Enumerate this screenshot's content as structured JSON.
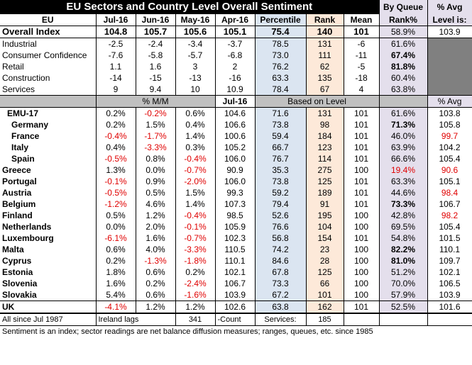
{
  "title": "EU Sectors and Country Level Overall Sentiment",
  "queue_header": [
    "By Queue",
    "Rank%"
  ],
  "avg_header": [
    "% Avg",
    "Level is:"
  ],
  "columns": [
    "EU",
    "Jul-16",
    "Jun-16",
    "May-16",
    "Apr-16",
    "Percentile",
    "Rank",
    "Mean"
  ],
  "overall": {
    "label": "Overall Index",
    "m1": "104.8",
    "m2": "105.7",
    "m3": "105.6",
    "m4": "105.1",
    "pct": "75.4",
    "rank": "140",
    "mean": "101",
    "queue": "58.9%",
    "avg": "103.9"
  },
  "sectors": [
    {
      "label": "Industrial",
      "m1": "-2.5",
      "m2": "-2.4",
      "m3": "-3.4",
      "m4": "-3.7",
      "pct": "78.5",
      "rank": "131",
      "mean": "-6",
      "queue": "61.6%",
      "qbold": false
    },
    {
      "label": "Consumer Confidence",
      "m1": "-7.6",
      "m2": "-5.8",
      "m3": "-5.7",
      "m4": "-6.8",
      "pct": "73.0",
      "rank": "111",
      "mean": "-11",
      "queue": "67.4%",
      "qbold": true
    },
    {
      "label": "Retail",
      "m1": "1.1",
      "m2": "1.6",
      "m3": "3",
      "m4": "2",
      "pct": "76.2",
      "rank": "62",
      "mean": "-5",
      "queue": "81.8%",
      "qbold": true
    },
    {
      "label": "Construction",
      "m1": "-14",
      "m2": "-15",
      "m3": "-13",
      "m4": "-16",
      "pct": "63.3",
      "rank": "135",
      "mean": "-18",
      "queue": "60.4%",
      "qbold": false
    },
    {
      "label": "Services",
      "m1": "9",
      "m2": "9.4",
      "m3": "10",
      "m4": "10.9",
      "pct": "78.4",
      "rank": "67",
      "mean": "4",
      "queue": "63.8%",
      "qbold": false
    }
  ],
  "subheader": {
    "mm": "% M/M",
    "jul": "Jul-16",
    "based": "Based on Level",
    "avg": "% Avg"
  },
  "countries": [
    {
      "label": "EMU-17",
      "indent": 1,
      "c1": "0.2%",
      "c2": "-0.2%",
      "c3": "0.6%",
      "lvl": "104.6",
      "pct": "71.6",
      "rank": "131",
      "mean": "101",
      "queue": "61.6%",
      "avg": "103.8",
      "red": [
        false,
        true,
        false
      ],
      "qbold": false,
      "qred": false,
      "ared": false
    },
    {
      "label": "Germany",
      "indent": 2,
      "c1": "0.2%",
      "c2": "1.5%",
      "c3": "0.4%",
      "lvl": "106.6",
      "pct": "73.8",
      "rank": "98",
      "mean": "101",
      "queue": "71.3%",
      "avg": "105.8",
      "red": [
        false,
        false,
        false
      ],
      "qbold": true,
      "qred": false,
      "ared": false
    },
    {
      "label": "France",
      "indent": 2,
      "c1": "-0.4%",
      "c2": "-1.7%",
      "c3": "1.4%",
      "lvl": "100.6",
      "pct": "59.4",
      "rank": "184",
      "mean": "101",
      "queue": "46.0%",
      "avg": "99.7",
      "red": [
        true,
        true,
        false
      ],
      "qbold": false,
      "qred": false,
      "ared": true
    },
    {
      "label": "Italy",
      "indent": 2,
      "c1": "0.4%",
      "c2": "-3.3%",
      "c3": "0.3%",
      "lvl": "105.2",
      "pct": "66.7",
      "rank": "123",
      "mean": "101",
      "queue": "63.9%",
      "avg": "104.2",
      "red": [
        false,
        true,
        false
      ],
      "qbold": false,
      "qred": false,
      "ared": false
    },
    {
      "label": "Spain",
      "indent": 2,
      "c1": "-0.5%",
      "c2": "0.8%",
      "c3": "-0.4%",
      "lvl": "106.0",
      "pct": "76.7",
      "rank": "114",
      "mean": "101",
      "queue": "66.6%",
      "avg": "105.4",
      "red": [
        true,
        false,
        true
      ],
      "qbold": false,
      "qred": false,
      "ared": false
    },
    {
      "label": "Greece",
      "indent": 0,
      "c1": "1.3%",
      "c2": "0.0%",
      "c3": "-0.7%",
      "lvl": "90.9",
      "pct": "35.3",
      "rank": "275",
      "mean": "100",
      "queue": "19.4%",
      "avg": "90.6",
      "red": [
        false,
        false,
        true
      ],
      "qbold": false,
      "qred": true,
      "ared": true
    },
    {
      "label": "Portugal",
      "indent": 0,
      "c1": "-0.1%",
      "c2": "0.9%",
      "c3": "-2.0%",
      "lvl": "106.0",
      "pct": "73.8",
      "rank": "125",
      "mean": "101",
      "queue": "63.3%",
      "avg": "105.1",
      "red": [
        true,
        false,
        true
      ],
      "qbold": false,
      "qred": false,
      "ared": false
    },
    {
      "label": "Austria",
      "indent": 0,
      "c1": "-0.5%",
      "c2": "0.5%",
      "c3": "1.5%",
      "lvl": "99.3",
      "pct": "59.2",
      "rank": "189",
      "mean": "101",
      "queue": "44.6%",
      "avg": "98.4",
      "red": [
        true,
        false,
        false
      ],
      "qbold": false,
      "qred": false,
      "ared": true
    },
    {
      "label": "Belgium",
      "indent": 0,
      "c1": "-1.2%",
      "c2": "4.6%",
      "c3": "1.4%",
      "lvl": "107.3",
      "pct": "79.4",
      "rank": "91",
      "mean": "101",
      "queue": "73.3%",
      "avg": "106.7",
      "red": [
        true,
        false,
        false
      ],
      "qbold": true,
      "qred": false,
      "ared": false
    },
    {
      "label": "Finland",
      "indent": 0,
      "c1": "0.5%",
      "c2": "1.2%",
      "c3": "-0.4%",
      "lvl": "98.5",
      "pct": "52.6",
      "rank": "195",
      "mean": "100",
      "queue": "42.8%",
      "avg": "98.2",
      "red": [
        false,
        false,
        true
      ],
      "qbold": false,
      "qred": false,
      "ared": true
    },
    {
      "label": "Netherlands",
      "indent": 0,
      "c1": "0.0%",
      "c2": "2.0%",
      "c3": "-0.1%",
      "lvl": "105.9",
      "pct": "76.6",
      "rank": "104",
      "mean": "100",
      "queue": "69.5%",
      "avg": "105.4",
      "red": [
        false,
        false,
        true
      ],
      "qbold": false,
      "qred": false,
      "ared": false
    },
    {
      "label": "Luxembourg",
      "indent": 0,
      "c1": "-6.1%",
      "c2": "1.6%",
      "c3": "-0.7%",
      "lvl": "102.3",
      "pct": "56.8",
      "rank": "154",
      "mean": "101",
      "queue": "54.8%",
      "avg": "101.5",
      "red": [
        true,
        false,
        true
      ],
      "qbold": false,
      "qred": false,
      "ared": false
    },
    {
      "label": "Malta",
      "indent": 0,
      "c1": "0.6%",
      "c2": "4.0%",
      "c3": "-3.3%",
      "lvl": "110.5",
      "pct": "74.2",
      "rank": "23",
      "mean": "100",
      "queue": "82.2%",
      "avg": "110.1",
      "red": [
        false,
        false,
        true
      ],
      "qbold": true,
      "qred": false,
      "ared": false
    },
    {
      "label": "Cyprus",
      "indent": 0,
      "c1": "0.2%",
      "c2": "-1.3%",
      "c3": "-1.8%",
      "lvl": "110.1",
      "pct": "84.6",
      "rank": "28",
      "mean": "100",
      "queue": "81.0%",
      "avg": "109.7",
      "red": [
        false,
        true,
        true
      ],
      "qbold": true,
      "qred": false,
      "ared": false
    },
    {
      "label": "Estonia",
      "indent": 0,
      "c1": "1.8%",
      "c2": "0.6%",
      "c3": "0.2%",
      "lvl": "102.1",
      "pct": "67.8",
      "rank": "125",
      "mean": "100",
      "queue": "51.2%",
      "avg": "102.1",
      "red": [
        false,
        false,
        false
      ],
      "qbold": false,
      "qred": false,
      "ared": false
    },
    {
      "label": "Slovenia",
      "indent": 0,
      "c1": "1.6%",
      "c2": "0.2%",
      "c3": "-2.4%",
      "lvl": "106.7",
      "pct": "73.3",
      "rank": "66",
      "mean": "100",
      "queue": "70.0%",
      "avg": "106.5",
      "red": [
        false,
        false,
        true
      ],
      "qbold": false,
      "qred": false,
      "ared": false
    },
    {
      "label": "Slovakia",
      "indent": 0,
      "c1": "5.4%",
      "c2": "0.6%",
      "c3": "-1.6%",
      "lvl": "103.9",
      "pct": "67.2",
      "rank": "101",
      "mean": "100",
      "queue": "57.9%",
      "avg": "103.9",
      "red": [
        false,
        false,
        true
      ],
      "qbold": false,
      "qred": false,
      "ared": false
    }
  ],
  "uk": {
    "label": "UK",
    "c1": "-4.1%",
    "c2": "1.2%",
    "c3": "1.2%",
    "lvl": "102.6",
    "pct": "63.8",
    "rank": "162",
    "mean": "101",
    "queue": "52.5%",
    "avg": "101.6",
    "red": [
      true,
      false,
      false
    ]
  },
  "footer": {
    "since": "All since Jul 1987",
    "lags": "Ireland lags",
    "count_val": "341",
    "count_label": "-Count",
    "services_label": "Services:",
    "services_val": "185"
  },
  "note": "Sentiment is an index; sector readings are net balance diffusion measures; ranges, queues, etc. since 1985",
  "colors": {
    "blue": "#dbe5f1",
    "peach": "#fde9d9",
    "lavender": "#e4dfec",
    "gray": "#c0c0c0",
    "dark_gray": "#808080",
    "red": "#e00000"
  }
}
